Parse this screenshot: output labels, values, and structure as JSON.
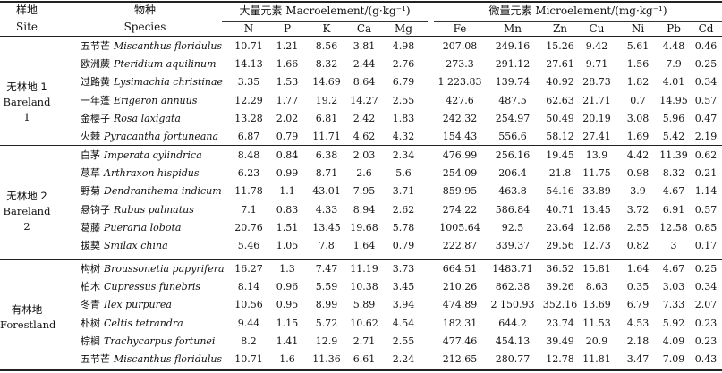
{
  "header": {
    "site_cn": "样地",
    "site_en": "Site",
    "species_cn": "物种",
    "species_en": "Species",
    "macro_group": "大量元素 Macroelement/(g·kg⁻¹)",
    "micro_group": "微量元素 Microelement/(mg·kg⁻¹)",
    "columns": [
      "N",
      "P",
      "K",
      "Ca",
      "Mg",
      "Fe",
      "Mn",
      "Zn",
      "Cu",
      "Ni",
      "Pb",
      "Cd"
    ]
  },
  "groups": [
    {
      "site_cn": "无林地 1",
      "site_en": "Bareland 1",
      "rows": [
        {
          "cn": "五节芒",
          "latin": "Miscanthus floridulus",
          "values": [
            "10.71",
            "1.21",
            "8.56",
            "3.81",
            "4.98",
            "207.08",
            "249.16",
            "15.26",
            "9.42",
            "5.61",
            "4.48",
            "0.46"
          ]
        },
        {
          "cn": "欧洲蕨",
          "latin": "Pteridium aquilinum",
          "values": [
            "14.13",
            "1.66",
            "8.32",
            "2.44",
            "2.76",
            "273.3",
            "291.12",
            "27.61",
            "9.71",
            "1.56",
            "7.9",
            "0.25"
          ]
        },
        {
          "cn": "过路黄",
          "latin": "Lysimachia christinae",
          "values": [
            "3.35",
            "1.53",
            "14.69",
            "8.64",
            "6.79",
            "1 223.83",
            "139.74",
            "40.92",
            "28.73",
            "1.82",
            "4.01",
            "0.34"
          ]
        },
        {
          "cn": "一年蓬",
          "latin": "Erigeron annuus",
          "values": [
            "12.29",
            "1.77",
            "19.2",
            "14.27",
            "2.55",
            "427.6",
            "487.5",
            "62.63",
            "21.71",
            "0.7",
            "14.95",
            "0.57"
          ]
        },
        {
          "cn": "金樱子",
          "latin": "Rosa laxigata",
          "values": [
            "13.28",
            "2.02",
            "6.81",
            "2.42",
            "1.83",
            "242.32",
            "254.97",
            "50.49",
            "20.19",
            "3.08",
            "5.96",
            "0.47"
          ]
        },
        {
          "cn": "火棘",
          "latin": "Pyracantha fortuneana",
          "values": [
            "6.87",
            "0.79",
            "11.71",
            "4.62",
            "4.32",
            "154.43",
            "556.6",
            "58.12",
            "27.41",
            "1.69",
            "5.42",
            "2.19"
          ]
        }
      ]
    },
    {
      "site_cn": "无林地 2",
      "site_en": "Bareland 2",
      "rows": [
        {
          "cn": "白茅",
          "latin": "Imperata cylindrica",
          "values": [
            "8.48",
            "0.84",
            "6.38",
            "2.03",
            "2.34",
            "476.99",
            "256.16",
            "19.45",
            "13.9",
            "4.42",
            "11.39",
            "0.62"
          ]
        },
        {
          "cn": "荩草",
          "latin": "Arthraxon hispidus",
          "values": [
            "6.23",
            "0.99",
            "8.71",
            "2.6",
            "5.6",
            "254.09",
            "206.4",
            "21.8",
            "11.75",
            "0.98",
            "8.32",
            "0.21"
          ]
        },
        {
          "cn": "野菊",
          "latin": "Dendranthema indicum",
          "values": [
            "11.78",
            "1.1",
            "43.01",
            "7.95",
            "3.71",
            "859.95",
            "463.8",
            "54.16",
            "33.89",
            "3.9",
            "4.67",
            "1.14"
          ]
        },
        {
          "cn": "悬钩子",
          "latin": "Rubus palmatus",
          "values": [
            "7.1",
            "0.83",
            "4.33",
            "8.94",
            "2.62",
            "274.22",
            "586.84",
            "40.71",
            "13.45",
            "3.72",
            "6.91",
            "0.57"
          ]
        },
        {
          "cn": "葛藤",
          "latin": "Pueraria lobota",
          "values": [
            "20.76",
            "1.51",
            "13.45",
            "19.68",
            "5.78",
            "1005.64",
            "92.5",
            "23.64",
            "12.68",
            "2.55",
            "12.58",
            "0.85"
          ]
        },
        {
          "cn": "拔葜",
          "latin": "Smilax china",
          "values": [
            "5.46",
            "1.05",
            "7.8",
            "1.64",
            "0.79",
            "222.87",
            "339.37",
            "29.56",
            "12.73",
            "0.82",
            "3",
            "0.17"
          ]
        }
      ]
    },
    {
      "site_cn": "有林地",
      "site_en": "Forestland",
      "rows": [
        {
          "cn": "构树",
          "latin": "Broussonetia papyrifera",
          "values": [
            "16.27",
            "1.3",
            "7.47",
            "11.19",
            "3.73",
            "664.51",
            "1483.71",
            "36.52",
            "15.81",
            "1.64",
            "4.67",
            "0.25"
          ]
        },
        {
          "cn": "柏木",
          "latin": "Cupressus funebris",
          "values": [
            "8.14",
            "0.96",
            "5.59",
            "10.38",
            "3.45",
            "210.26",
            "862.38",
            "39.26",
            "8.63",
            "0.35",
            "3.03",
            "0.34"
          ]
        },
        {
          "cn": "冬青",
          "latin": "Ilex purpurea",
          "values": [
            "10.56",
            "0.95",
            "8.99",
            "5.89",
            "3.94",
            "474.89",
            "2 150.93",
            "352.16",
            "13.69",
            "6.79",
            "7.33",
            "2.07"
          ]
        },
        {
          "cn": "朴树",
          "latin": "Celtis tetrandra",
          "values": [
            "9.44",
            "1.15",
            "5.72",
            "10.62",
            "4.54",
            "182.31",
            "644.2",
            "23.74",
            "11.53",
            "4.53",
            "5.92",
            "0.23"
          ]
        },
        {
          "cn": "棕榈",
          "latin": "Trachycarpus fortunei",
          "values": [
            "8.2",
            "1.41",
            "12.9",
            "2.71",
            "2.55",
            "477.46",
            "454.13",
            "39.49",
            "20.9",
            "2.18",
            "4.09",
            "0.23"
          ]
        },
        {
          "cn": "五节芒",
          "latin": "Miscanthus floridulus",
          "values": [
            "10.71",
            "1.6",
            "11.36",
            "6.61",
            "2.24",
            "212.65",
            "280.77",
            "12.78",
            "11.81",
            "3.47",
            "7.09",
            "0.43"
          ]
        }
      ]
    }
  ]
}
